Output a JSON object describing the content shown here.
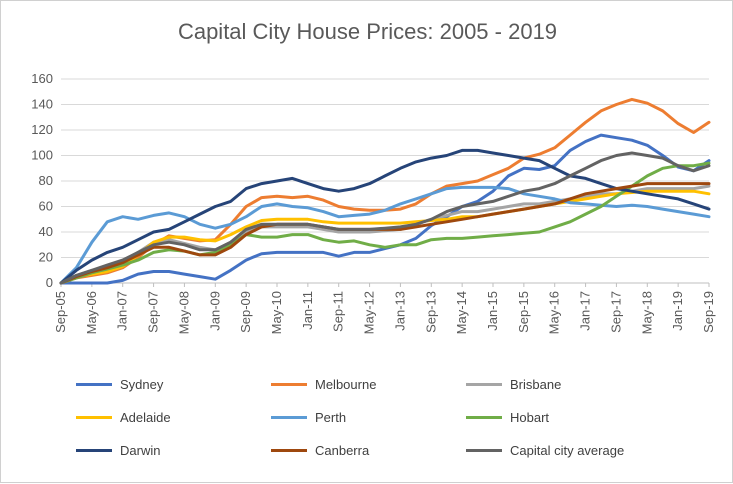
{
  "chart_data": {
    "type": "line",
    "title": "Capital City House Prices:  2005 - 2019",
    "xlabel": "",
    "ylabel": "",
    "ylim": [
      0,
      160
    ],
    "yticks": [
      0,
      20,
      40,
      60,
      80,
      100,
      120,
      140,
      160
    ],
    "x": [
      "Sep-05",
      "Jan-06",
      "May-06",
      "Sep-06",
      "Jan-07",
      "May-07",
      "Sep-07",
      "Jan-08",
      "May-08",
      "Sep-08",
      "Jan-09",
      "May-09",
      "Sep-09",
      "Jan-10",
      "May-10",
      "Sep-10",
      "Jan-11",
      "May-11",
      "Sep-11",
      "Jan-12",
      "May-12",
      "Sep-12",
      "Jan-13",
      "May-13",
      "Sep-13",
      "Jan-14",
      "May-14",
      "Sep-14",
      "Jan-15",
      "May-15",
      "Sep-15",
      "Jan-16",
      "May-16",
      "Sep-16",
      "Jan-17",
      "May-17",
      "Sep-17",
      "Jan-18",
      "May-18",
      "Sep-18",
      "Jan-19",
      "May-19",
      "Sep-19"
    ],
    "xtick_labels": [
      "Sep-05",
      "May-06",
      "Jan-07",
      "Sep-07",
      "May-08",
      "Jan-09",
      "Sep-09",
      "May-10",
      "Jan-11",
      "Sep-11",
      "May-12",
      "Jan-13",
      "Sep-13",
      "May-14",
      "Jan-15",
      "Sep-15",
      "May-16",
      "Jan-17",
      "Sep-17",
      "May-18",
      "Jan-19",
      "Sep-19"
    ],
    "grid": true,
    "legend_position": "bottom",
    "series": [
      {
        "name": "Sydney",
        "color": "#4472C4",
        "values": [
          0,
          0,
          0,
          0,
          2,
          7,
          9,
          9,
          7,
          5,
          3,
          10,
          18,
          23,
          24,
          24,
          24,
          24,
          21,
          24,
          24,
          27,
          30,
          35,
          45,
          52,
          60,
          64,
          72,
          84,
          90,
          89,
          92,
          104,
          111,
          116,
          114,
          112,
          108,
          100,
          91,
          88,
          96
        ]
      },
      {
        "name": "Melbourne",
        "color": "#ED7D31",
        "values": [
          0,
          4,
          6,
          8,
          12,
          20,
          30,
          37,
          35,
          33,
          34,
          46,
          60,
          67,
          68,
          67,
          68,
          65,
          60,
          58,
          57,
          57,
          58,
          62,
          70,
          76,
          78,
          80,
          85,
          90,
          98,
          101,
          106,
          116,
          126,
          135,
          140,
          144,
          141,
          135,
          125,
          118,
          126
        ]
      },
      {
        "name": "Brisbane",
        "color": "#A5A5A5",
        "values": [
          0,
          6,
          10,
          12,
          16,
          24,
          32,
          34,
          31,
          28,
          26,
          32,
          40,
          44,
          44,
          44,
          44,
          42,
          40,
          40,
          40,
          41,
          42,
          46,
          50,
          53,
          56,
          56,
          58,
          60,
          62,
          62,
          64,
          66,
          68,
          70,
          70,
          72,
          74,
          74,
          74,
          74,
          76
        ]
      },
      {
        "name": "Adelaide",
        "color": "#FFC000",
        "values": [
          0,
          5,
          7,
          9,
          13,
          22,
          32,
          36,
          36,
          34,
          33,
          38,
          44,
          49,
          50,
          50,
          50,
          48,
          47,
          47,
          47,
          47,
          47,
          48,
          49,
          50,
          52,
          52,
          54,
          56,
          58,
          60,
          62,
          64,
          66,
          68,
          70,
          71,
          72,
          72,
          72,
          72,
          70
        ]
      },
      {
        "name": "Perth",
        "color": "#5B9BD5",
        "values": [
          0,
          12,
          32,
          48,
          52,
          50,
          53,
          55,
          52,
          46,
          43,
          46,
          52,
          60,
          62,
          60,
          59,
          56,
          52,
          53,
          54,
          57,
          62,
          66,
          70,
          74,
          75,
          75,
          75,
          74,
          70,
          68,
          66,
          63,
          62,
          61,
          60,
          61,
          60,
          58,
          56,
          54,
          52
        ]
      },
      {
        "name": "Hobart",
        "color": "#70AD47",
        "values": [
          0,
          4,
          8,
          11,
          14,
          18,
          24,
          26,
          25,
          22,
          24,
          30,
          38,
          36,
          36,
          38,
          38,
          34,
          32,
          33,
          30,
          28,
          30,
          30,
          34,
          35,
          35,
          36,
          37,
          38,
          39,
          40,
          44,
          48,
          54,
          60,
          68,
          76,
          84,
          90,
          92,
          92,
          94
        ]
      },
      {
        "name": "Darwin",
        "color": "#264478",
        "values": [
          0,
          10,
          18,
          24,
          28,
          34,
          40,
          42,
          48,
          54,
          60,
          64,
          74,
          78,
          80,
          82,
          78,
          74,
          72,
          74,
          78,
          84,
          90,
          95,
          98,
          100,
          104,
          104,
          102,
          100,
          98,
          96,
          90,
          84,
          82,
          78,
          74,
          72,
          70,
          68,
          66,
          62,
          58
        ]
      },
      {
        "name": "Canberra",
        "color": "#9E480E",
        "values": [
          0,
          5,
          9,
          12,
          16,
          22,
          28,
          28,
          25,
          22,
          22,
          28,
          38,
          44,
          46,
          46,
          46,
          44,
          42,
          42,
          42,
          42,
          42,
          44,
          46,
          48,
          50,
          52,
          54,
          56,
          58,
          60,
          62,
          66,
          70,
          72,
          74,
          76,
          78,
          78,
          78,
          78,
          78
        ]
      },
      {
        "name": "Capital city average",
        "color": "#636363",
        "values": [
          0,
          6,
          10,
          14,
          18,
          24,
          30,
          32,
          30,
          26,
          26,
          32,
          42,
          46,
          46,
          46,
          46,
          44,
          42,
          42,
          42,
          43,
          44,
          46,
          50,
          56,
          60,
          62,
          64,
          68,
          72,
          74,
          78,
          84,
          90,
          96,
          100,
          102,
          100,
          98,
          92,
          88,
          92
        ]
      }
    ]
  }
}
